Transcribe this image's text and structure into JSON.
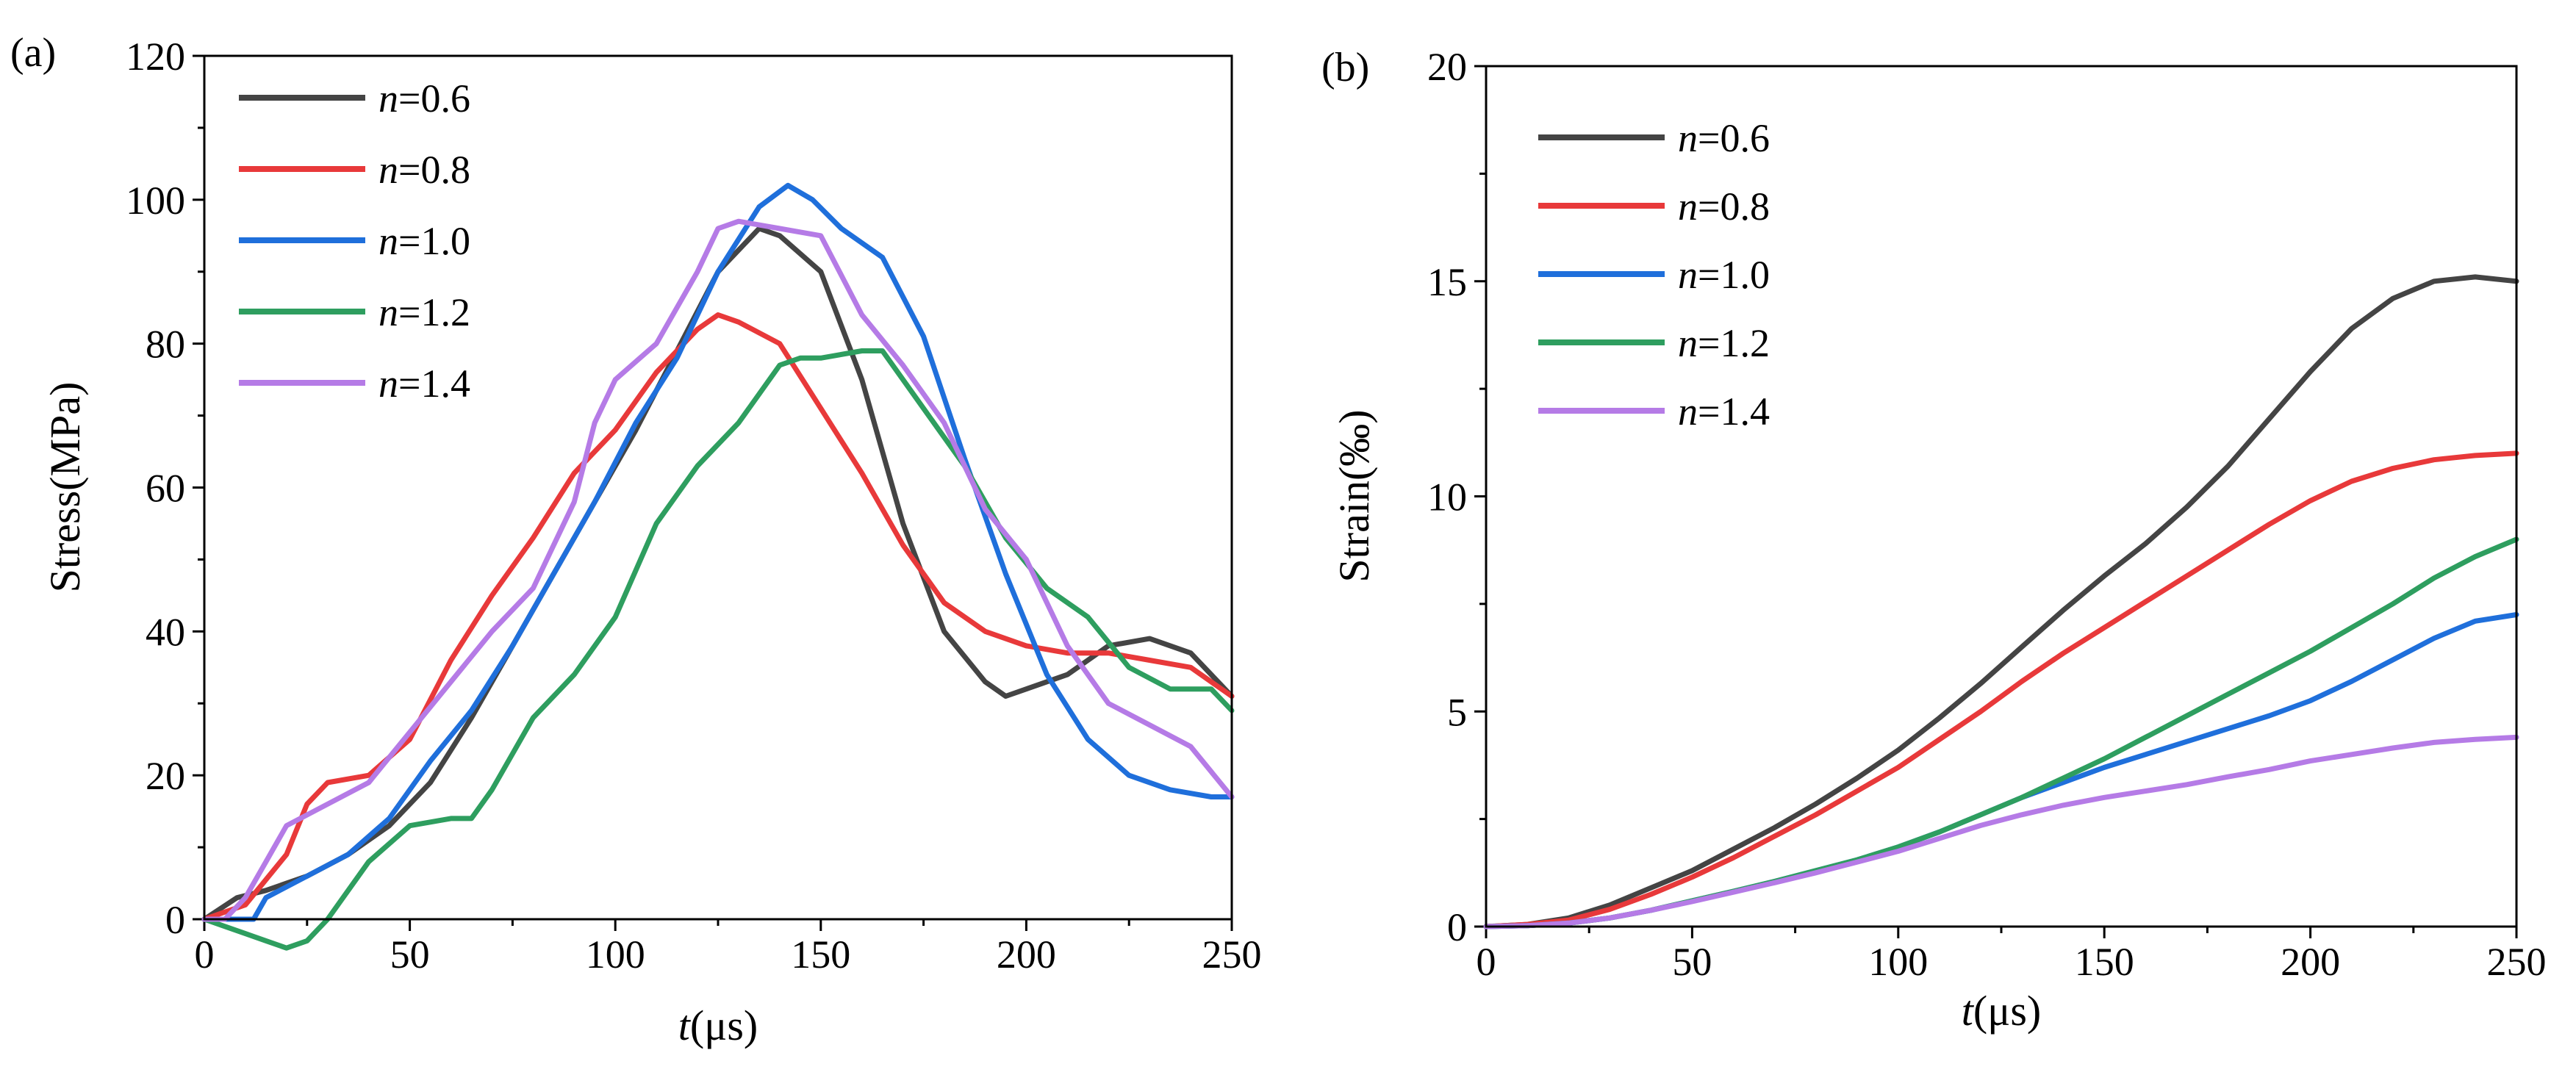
{
  "chart_data": [
    {
      "panel_label": "(a)",
      "type": "line",
      "xlabel_italic": "t",
      "xlabel_unit": "(μs)",
      "ylabel": "Stress(MPa)",
      "xlim": [
        0,
        250
      ],
      "ylim": [
        0,
        120
      ],
      "xticks": [
        0,
        50,
        100,
        150,
        200,
        250
      ],
      "yticks": [
        0,
        20,
        40,
        60,
        80,
        100,
        120
      ],
      "legend_position": "top-left",
      "series": [
        {
          "name": "n=0.6",
          "label_italic": "n",
          "label_value": "=0.6",
          "color": "#444444",
          "x": [
            0,
            8,
            15,
            25,
            35,
            45,
            55,
            65,
            75,
            85,
            95,
            105,
            115,
            125,
            135,
            140,
            150,
            160,
            170,
            180,
            190,
            195,
            200,
            210,
            220,
            230,
            240,
            250
          ],
          "y": [
            0,
            3,
            4,
            6,
            9,
            13,
            19,
            28,
            38,
            48,
            58,
            68,
            79,
            90,
            96,
            95,
            90,
            75,
            55,
            40,
            33,
            31,
            32,
            34,
            38,
            39,
            37,
            31
          ]
        },
        {
          "name": "n=0.8",
          "label_italic": "n",
          "label_value": "=0.8",
          "color": "#e8393a",
          "x": [
            0,
            10,
            20,
            25,
            30,
            40,
            50,
            60,
            70,
            80,
            90,
            100,
            110,
            120,
            125,
            130,
            140,
            150,
            160,
            170,
            180,
            190,
            200,
            210,
            220,
            230,
            240,
            250
          ],
          "y": [
            0,
            2,
            9,
            16,
            19,
            20,
            25,
            36,
            45,
            53,
            62,
            68,
            76,
            82,
            84,
            83,
            80,
            71,
            62,
            52,
            44,
            40,
            38,
            37,
            37,
            36,
            35,
            31
          ]
        },
        {
          "name": "n=1.0",
          "label_italic": "n",
          "label_value": "=1.0",
          "color": "#1f6fdb",
          "x": [
            0,
            5,
            12,
            15,
            25,
            35,
            45,
            55,
            65,
            75,
            85,
            95,
            105,
            115,
            125,
            135,
            142,
            148,
            155,
            165,
            175,
            185,
            195,
            205,
            215,
            225,
            235,
            245,
            250
          ],
          "y": [
            0,
            0,
            0,
            3,
            6,
            9,
            14,
            22,
            29,
            38,
            48,
            58,
            69,
            78,
            90,
            99,
            102,
            100,
            96,
            92,
            81,
            64,
            48,
            34,
            25,
            20,
            18,
            17,
            17
          ]
        },
        {
          "name": "n=1.2",
          "label_italic": "n",
          "label_value": "=1.2",
          "color": "#2e9e5f",
          "x": [
            0,
            5,
            10,
            15,
            20,
            25,
            30,
            40,
            50,
            60,
            65,
            70,
            75,
            80,
            90,
            100,
            110,
            120,
            130,
            140,
            145,
            150,
            160,
            165,
            175,
            185,
            195,
            205,
            215,
            225,
            235,
            245,
            250
          ],
          "y": [
            0,
            -1,
            -2,
            -3,
            -4,
            -3,
            0,
            8,
            13,
            14,
            14,
            18,
            23,
            28,
            34,
            42,
            55,
            63,
            69,
            77,
            78,
            78,
            79,
            79,
            71,
            63,
            53,
            46,
            42,
            35,
            32,
            32,
            29
          ]
        },
        {
          "name": "n=1.4",
          "label_italic": "n",
          "label_value": "=1.4",
          "color": "#b57be6",
          "x": [
            0,
            5,
            10,
            15,
            20,
            30,
            40,
            50,
            60,
            70,
            80,
            90,
            95,
            100,
            110,
            120,
            125,
            130,
            140,
            150,
            160,
            170,
            180,
            190,
            200,
            210,
            220,
            230,
            240,
            250
          ],
          "y": [
            0,
            0,
            3,
            8,
            13,
            16,
            19,
            26,
            33,
            40,
            46,
            58,
            69,
            75,
            80,
            90,
            96,
            97,
            96,
            95,
            84,
            77,
            69,
            57,
            50,
            38,
            30,
            27,
            24,
            17
          ]
        }
      ]
    },
    {
      "panel_label": "(b)",
      "type": "line",
      "xlabel_italic": "t",
      "xlabel_unit": "(μs)",
      "ylabel": "Strain(‰)",
      "xlim": [
        0,
        250
      ],
      "ylim": [
        0,
        20
      ],
      "xticks": [
        0,
        50,
        100,
        150,
        200,
        250
      ],
      "yticks": [
        0,
        5,
        10,
        15,
        20
      ],
      "legend_position": "top-left",
      "series": [
        {
          "name": "n=0.6",
          "label_italic": "n",
          "label_value": "=0.6",
          "color": "#444444",
          "x": [
            0,
            10,
            20,
            30,
            40,
            50,
            60,
            70,
            80,
            90,
            100,
            110,
            120,
            130,
            140,
            150,
            160,
            170,
            180,
            190,
            200,
            210,
            220,
            230,
            240,
            250
          ],
          "y": [
            0,
            0.05,
            0.2,
            0.5,
            0.9,
            1.3,
            1.8,
            2.3,
            2.85,
            3.45,
            4.1,
            4.85,
            5.65,
            6.5,
            7.35,
            8.15,
            8.9,
            9.75,
            10.7,
            11.8,
            12.9,
            13.9,
            14.6,
            15.0,
            15.1,
            15.0
          ]
        },
        {
          "name": "n=0.8",
          "label_italic": "n",
          "label_value": "=0.8",
          "color": "#e8393a",
          "x": [
            0,
            10,
            20,
            30,
            40,
            50,
            60,
            70,
            80,
            90,
            100,
            110,
            120,
            130,
            140,
            150,
            160,
            170,
            180,
            190,
            200,
            210,
            220,
            230,
            240,
            250
          ],
          "y": [
            0,
            0.05,
            0.15,
            0.4,
            0.75,
            1.15,
            1.6,
            2.1,
            2.6,
            3.15,
            3.7,
            4.35,
            5.0,
            5.7,
            6.35,
            6.95,
            7.55,
            8.15,
            8.75,
            9.35,
            9.9,
            10.35,
            10.65,
            10.85,
            10.95,
            11.0
          ]
        },
        {
          "name": "n=1.0",
          "label_italic": "n",
          "label_value": "=1.0",
          "color": "#1f6fdb",
          "x": [
            0,
            10,
            20,
            30,
            40,
            50,
            60,
            70,
            80,
            90,
            100,
            110,
            120,
            130,
            140,
            150,
            160,
            170,
            180,
            190,
            200,
            210,
            220,
            230,
            240,
            250
          ],
          "y": [
            0,
            0.02,
            0.08,
            0.2,
            0.38,
            0.6,
            0.82,
            1.05,
            1.3,
            1.55,
            1.85,
            2.2,
            2.6,
            3.0,
            3.35,
            3.7,
            4.0,
            4.3,
            4.6,
            4.9,
            5.25,
            5.7,
            6.2,
            6.7,
            7.1,
            7.25
          ]
        },
        {
          "name": "n=1.2",
          "label_italic": "n",
          "label_value": "=1.2",
          "color": "#2e9e5f",
          "x": [
            0,
            10,
            20,
            30,
            40,
            50,
            60,
            70,
            80,
            90,
            100,
            110,
            120,
            130,
            140,
            150,
            160,
            170,
            180,
            190,
            200,
            210,
            220,
            230,
            240,
            250
          ],
          "y": [
            0,
            0.02,
            0.08,
            0.2,
            0.38,
            0.6,
            0.82,
            1.05,
            1.3,
            1.55,
            1.85,
            2.2,
            2.6,
            3.0,
            3.45,
            3.9,
            4.4,
            4.9,
            5.4,
            5.9,
            6.4,
            6.95,
            7.5,
            8.1,
            8.6,
            9.0
          ]
        },
        {
          "name": "n=1.4",
          "label_italic": "n",
          "label_value": "=1.4",
          "color": "#b57be6",
          "x": [
            0,
            10,
            20,
            30,
            40,
            50,
            60,
            70,
            80,
            90,
            100,
            110,
            120,
            130,
            140,
            150,
            160,
            170,
            180,
            190,
            200,
            210,
            220,
            230,
            240,
            250
          ],
          "y": [
            0,
            0.02,
            0.08,
            0.2,
            0.38,
            0.58,
            0.8,
            1.02,
            1.25,
            1.5,
            1.75,
            2.05,
            2.35,
            2.6,
            2.82,
            3.0,
            3.15,
            3.3,
            3.48,
            3.65,
            3.85,
            4.0,
            4.15,
            4.28,
            4.35,
            4.4
          ]
        }
      ]
    }
  ]
}
